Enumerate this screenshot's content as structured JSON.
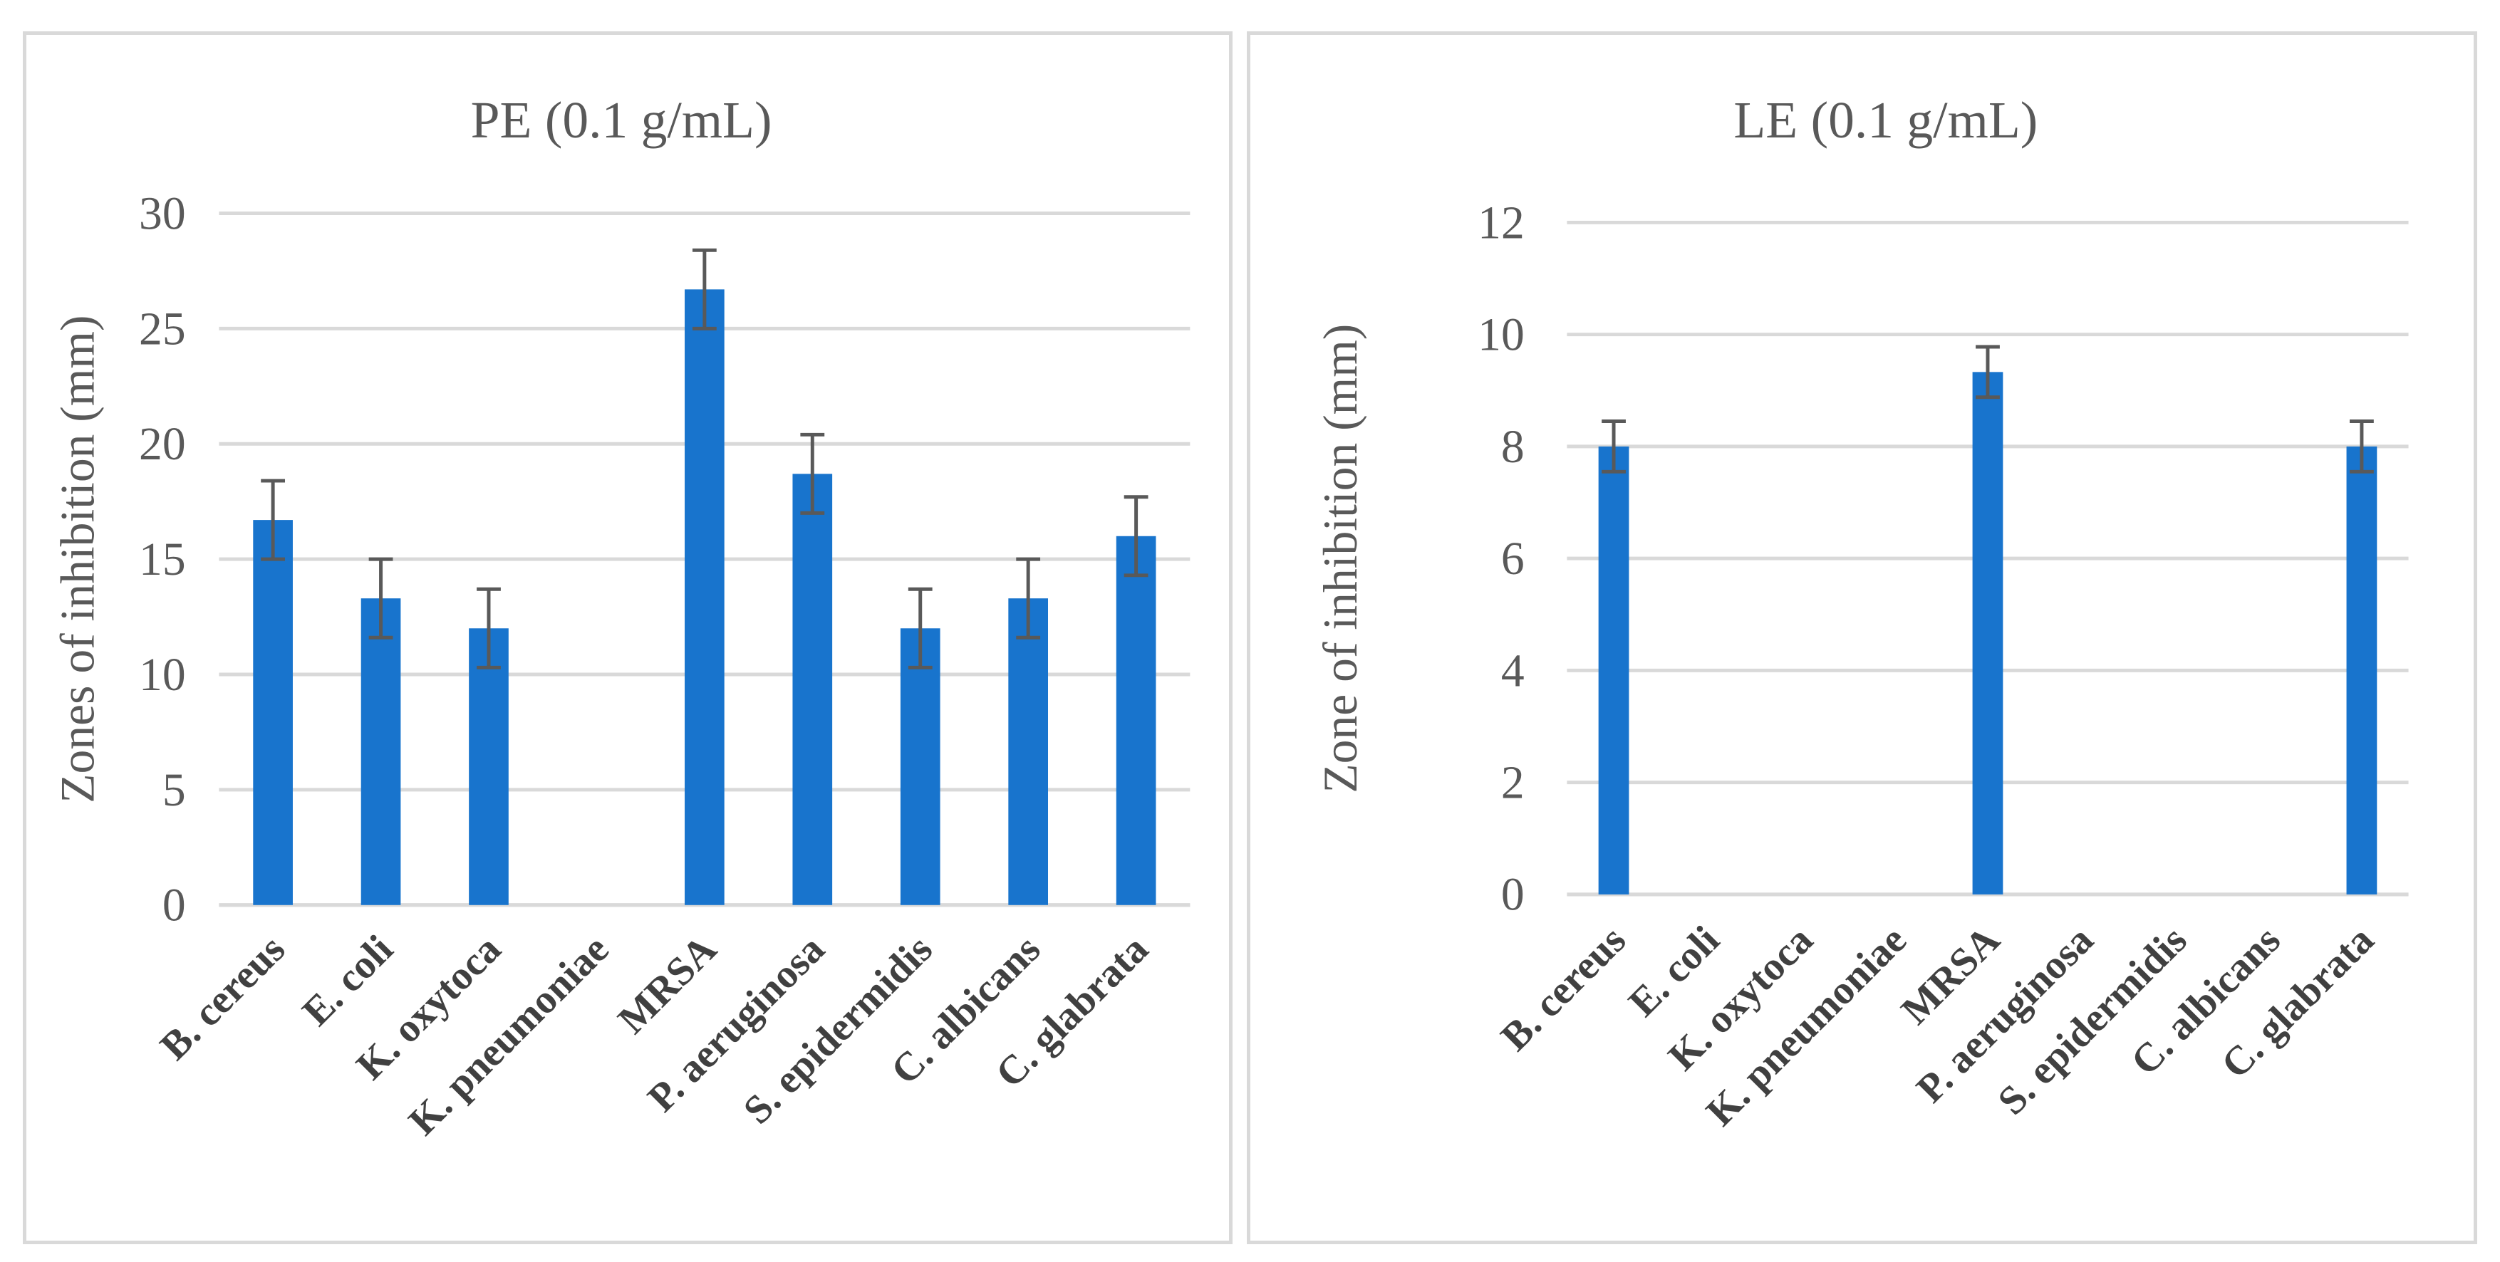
{
  "chart_data": [
    {
      "type": "bar",
      "title": "PE (0.1 g/mL)",
      "xlabel": "",
      "ylabel": "Zones of inhibition (mm)",
      "ylim": [
        0,
        30
      ],
      "yticks": [
        0,
        5,
        10,
        15,
        20,
        25,
        30
      ],
      "grid": true,
      "bar_color": "#1874cd",
      "error_color": "#595959",
      "categories": [
        "B. cereus",
        "E. coli",
        "K. oxytoca",
        "K. pneumoniae",
        "MRSA",
        "P. aeruginosa",
        "S. epidermidis",
        "C. albicans",
        "C. glabrata"
      ],
      "values": [
        16.7,
        13.3,
        12.0,
        0,
        26.7,
        18.7,
        12.0,
        13.3,
        16.0
      ],
      "errors": [
        1.7,
        1.7,
        1.7,
        0,
        1.7,
        1.7,
        1.7,
        1.7,
        1.7
      ]
    },
    {
      "type": "bar",
      "title": "LE (0.1 g/mL)",
      "xlabel": "",
      "ylabel": "Zone of inhibition (mm)",
      "ylim": [
        0,
        12
      ],
      "yticks": [
        0,
        2,
        4,
        6,
        8,
        10,
        12
      ],
      "grid": true,
      "bar_color": "#1874cd",
      "error_color": "#595959",
      "categories": [
        "B. cereus",
        "E. coli",
        "K. oxytoca",
        "K. pneumoniae",
        "MRSA",
        "P. aeruginosa",
        "S. epidermidis",
        "C. albicans",
        "C. glabrata"
      ],
      "values": [
        8.0,
        0,
        0,
        0,
        9.33,
        0,
        0,
        0,
        8.0
      ],
      "errors": [
        0.45,
        0,
        0,
        0,
        0.45,
        0,
        0,
        0,
        0.45
      ]
    }
  ]
}
